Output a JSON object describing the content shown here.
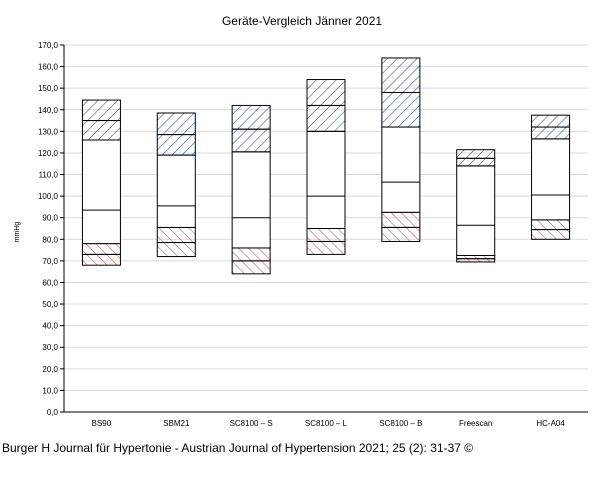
{
  "chart_data": {
    "type": "bar",
    "title": "Geräte-Vergleich Jänner 2021",
    "ylabel": "mmHg",
    "xlabel": "",
    "ylim": [
      0,
      170
    ],
    "ytick_step": 10,
    "grid": "horizontal",
    "categories": [
      "BS90",
      "SBM21",
      "SC8100 – S",
      "SC8100 – L",
      "SC8100 – B",
      "Freescan",
      "HC-A04"
    ],
    "boxes": [
      {
        "category": "BS90",
        "diastolic": [
          68,
          73,
          78
        ],
        "mean": 93.5,
        "systolic": [
          126,
          135,
          144.5
        ]
      },
      {
        "category": "SBM21",
        "diastolic": [
          72,
          78.5,
          85.5
        ],
        "mean": 95.5,
        "systolic": [
          119,
          128.5,
          138.5
        ]
      },
      {
        "category": "SC8100 – S",
        "diastolic": [
          64,
          70,
          76
        ],
        "mean": 90,
        "systolic": [
          120.5,
          131,
          142
        ]
      },
      {
        "category": "SC8100 – L",
        "diastolic": [
          73,
          79,
          85
        ],
        "mean": 100,
        "systolic": [
          130,
          142,
          154
        ]
      },
      {
        "category": "SC8100 – B",
        "diastolic": [
          79,
          85.5,
          92.5
        ],
        "mean": 106.5,
        "systolic": [
          132,
          148,
          164
        ]
      },
      {
        "category": "Freescan",
        "diastolic": [
          69.5,
          71,
          72.5
        ],
        "mean": 86.5,
        "systolic": [
          114,
          117.5,
          121.5
        ]
      },
      {
        "category": "HC-A04",
        "diastolic": [
          80,
          84.5,
          89
        ],
        "mean": 100.5,
        "systolic": [
          126.5,
          132,
          137.5
        ]
      }
    ],
    "colors": {
      "systolic_hatch": "#1f4e8c",
      "diastolic_hatch": "#c0504d",
      "grid": "#d9d9d9",
      "box": "#000000"
    }
  },
  "caption": "Burger H Journal für Hypertonie - Austrian Journal of Hypertension 2021; 25 (2): 31-37 ©"
}
